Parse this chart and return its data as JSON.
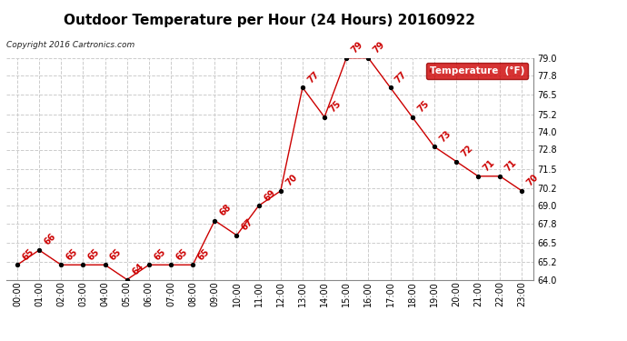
{
  "title": "Outdoor Temperature per Hour (24 Hours) 20160922",
  "copyright": "Copyright 2016 Cartronics.com",
  "legend_label": "Temperature  (°F)",
  "hours": [
    0,
    1,
    2,
    3,
    4,
    5,
    6,
    7,
    8,
    9,
    10,
    11,
    12,
    13,
    14,
    15,
    16,
    17,
    18,
    19,
    20,
    21,
    22,
    23
  ],
  "hour_labels": [
    "00:00",
    "01:00",
    "02:00",
    "03:00",
    "04:00",
    "05:00",
    "06:00",
    "07:00",
    "08:00",
    "09:00",
    "10:00",
    "11:00",
    "12:00",
    "13:00",
    "14:00",
    "15:00",
    "16:00",
    "17:00",
    "18:00",
    "19:00",
    "20:00",
    "21:00",
    "22:00",
    "23:00"
  ],
  "temps": [
    65,
    66,
    65,
    65,
    65,
    64,
    65,
    65,
    65,
    68,
    67,
    69,
    70,
    77,
    75,
    79,
    79,
    77,
    75,
    73,
    72,
    71,
    71,
    70
  ],
  "ylim_min": 64.0,
  "ylim_max": 79.0,
  "yticks": [
    64.0,
    65.2,
    66.5,
    67.8,
    69.0,
    70.2,
    71.5,
    72.8,
    74.0,
    75.2,
    76.5,
    77.8,
    79.0
  ],
  "line_color": "#cc0000",
  "marker_color": "#000000",
  "label_color": "#cc0000",
  "grid_color": "#cccccc",
  "title_fontsize": 11,
  "copyright_fontsize": 6.5,
  "tick_fontsize": 7,
  "label_fontsize": 7,
  "legend_bg": "#cc0000",
  "legend_fg": "#ffffff",
  "bg_color": "#ffffff"
}
